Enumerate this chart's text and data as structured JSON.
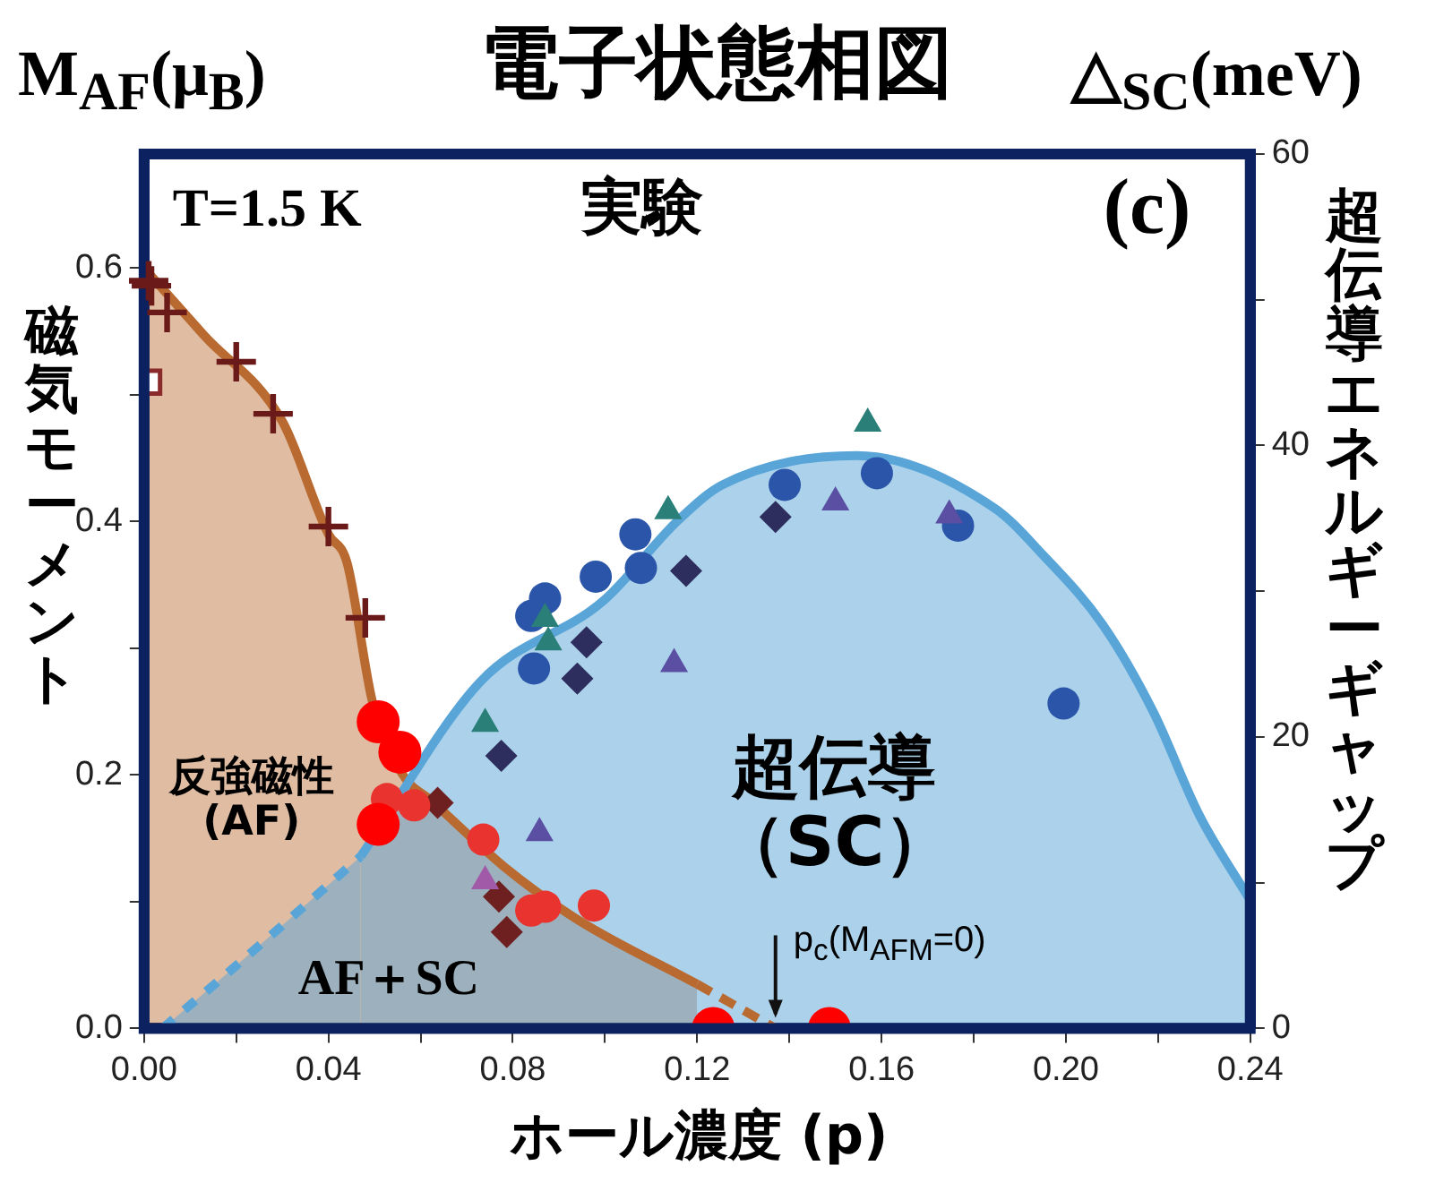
{
  "chart_data": {
    "type": "scatter",
    "title": "電子状態相図",
    "xlabel": "ホール濃度 (p)",
    "ylabel": "磁気モーメント",
    "y2label": "超伝導エネルギーギャップ",
    "xlim": [
      0,
      0.24
    ],
    "xticks": [
      {
        "value": 0,
        "label": "0.00"
      },
      {
        "value": 0.02,
        "label": null
      },
      0.04,
      {
        "value": 0.06,
        "label": null
      },
      0.08,
      {
        "value": 0.1,
        "label": null
      },
      0.12,
      {
        "value": 0.14,
        "label": null
      },
      0.16,
      {
        "value": 0.18,
        "label": null
      },
      {
        "value": 0.2,
        "label": "0.20"
      },
      {
        "value": 0.22,
        "label": null
      },
      0.24
    ],
    "ylim": [
      0,
      0.69
    ],
    "yticks": [
      {
        "value": 0,
        "label": "0.0"
      },
      {
        "value": 0.1,
        "label": null
      },
      0.2,
      {
        "value": 0.3,
        "label": null
      },
      0.4,
      {
        "value": 0.5,
        "label": null
      },
      0.6
    ],
    "y2lim": [
      0,
      60
    ],
    "y2ticks": [
      0,
      {
        "value": 10,
        "label": null
      },
      20,
      {
        "value": 30,
        "label": null
      },
      40,
      {
        "value": 50,
        "label": null
      },
      60
    ],
    "grid": false,
    "legend": false,
    "series": [
      {
        "type": "area",
        "color": "#b96a30",
        "line_style": "solid",
        "x": [
          0,
          0.013,
          0.03,
          0.04,
          0.044,
          0.0496,
          0.056,
          0.0626,
          0.078,
          0.094,
          0.12
        ],
        "values": [
          0.6,
          0.547,
          0.479,
          0.39,
          0.368,
          0.257,
          0.201,
          0.179,
          0.128,
          0.086,
          0.035
        ]
      },
      {
        "type": "line",
        "color": "#b96a30",
        "line_style": "dashed",
        "x": [
          0.12,
          0.137
        ],
        "values": [
          0.035,
          0
        ]
      },
      {
        "type": "area",
        "color": "#5aa5d8",
        "axis": "y2",
        "line_style": "dotted",
        "x": [
          0.004,
          0.0174,
          0.047
        ],
        "values": [
          0,
          3.6,
          11.8
        ]
      },
      {
        "type": "area",
        "color": "#5aa5d8",
        "axis": "y2",
        "line_style": "solid",
        "x": [
          0.047,
          0.073,
          0.0995,
          0.116,
          0.1255,
          0.1546,
          0.1845,
          0.195,
          0.208,
          0.219,
          0.229,
          0.24
        ],
        "values": [
          11.8,
          23.8,
          29.3,
          34.9,
          37.3,
          39.3,
          35.7,
          32.5,
          27.7,
          21.7,
          14.6,
          8.8
        ]
      },
      {
        "type": "scatter",
        "marker": "cross",
        "color": "#6b1a1a",
        "x": [
          0.001,
          0.0016,
          0.005,
          0.02,
          0.028,
          0.04,
          0.048
        ],
        "values": [
          0.59,
          0.586,
          0.565,
          0.526,
          0.485,
          0.396,
          0.324
        ]
      },
      {
        "type": "scatter",
        "marker": "square",
        "color": "#8b2a2a",
        "x": [
          0.001
        ],
        "values": [
          0.51
        ]
      },
      {
        "type": "scatter",
        "marker": "circle",
        "color": "#ff0000",
        "x": [
          0.0508,
          0.0555,
          0.0508,
          0.1235,
          0.1487
        ],
        "values": [
          0.242,
          0.218,
          0.161,
          0,
          0
        ]
      },
      {
        "type": "scatter",
        "marker": "circle",
        "color": "#e8332f",
        "x": [
          0.0527,
          0.0586,
          0.0736,
          0.084,
          0.087,
          0.0976
        ],
        "values": [
          0.181,
          0.176,
          0.149,
          0.093,
          0.096,
          0.097
        ]
      },
      {
        "type": "scatter",
        "marker": "diamond",
        "color": "#6e1f1f",
        "x": [
          0.0637,
          0.077,
          0.0787
        ],
        "values": [
          0.178,
          0.104,
          0.076
        ]
      },
      {
        "type": "scatter",
        "marker": "circle",
        "color": "#2a55a8",
        "axis": "y2",
        "x": [
          0.1066,
          0.098,
          0.1078,
          0.087,
          0.084,
          0.0846,
          0.139,
          0.159,
          0.1766,
          0.1995
        ],
        "values": [
          33.9,
          31.0,
          31.6,
          29.5,
          28.3,
          24.7,
          37.3,
          38.1,
          34.5,
          22.3
        ]
      },
      {
        "type": "scatter",
        "marker": "triangle",
        "color": "#2a8078",
        "axis": "y2",
        "x": [
          0.1137,
          0.087,
          0.0877,
          0.074,
          0.157
        ],
        "values": [
          35.5,
          28.1,
          26.5,
          20.9,
          41.5
        ]
      },
      {
        "type": "scatter",
        "marker": "diamond",
        "color": "#2e2e5e",
        "axis": "y2",
        "x": [
          0.1176,
          0.096,
          0.094,
          0.0775,
          0.137
        ],
        "values": [
          31.4,
          26.5,
          24.0,
          18.7,
          35.1
        ]
      },
      {
        "type": "scatter",
        "marker": "triangle",
        "color": "#5a4fa3",
        "axis": "y2",
        "x": [
          0.115,
          0.0858,
          0.15,
          0.1747
        ],
        "values": [
          25.0,
          13.4,
          36.1,
          35.2
        ]
      },
      {
        "type": "scatter",
        "marker": "triangle",
        "color": "#a05aa8",
        "axis": "y2",
        "x": [
          0.074
        ],
        "values": [
          10.1
        ]
      }
    ],
    "annotations": [
      "M$_{AF}$(μ$_{B}$)",
      "△$_{SC}$(meV)",
      "T=1.5 K",
      "実験",
      "(c)",
      "反強磁性\n(AF)",
      "超伝導（SC）",
      "AF＋SC",
      {
        "text": "p$_{c}$(M$_{AFM}$=0)",
        "x": 0.137,
        "y": 0
      }
    ]
  }
}
